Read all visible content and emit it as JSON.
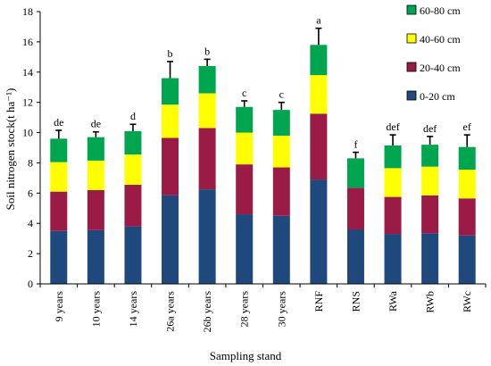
{
  "chart_data": {
    "type": "bar",
    "stacked": true,
    "title": "",
    "xlabel": "Sampling stand",
    "ylabel": "Soil nitrogen stock(t ha⁻¹)",
    "ylim": [
      0,
      18
    ],
    "yticks": [
      "0",
      "2",
      "4",
      "6",
      "8",
      "10",
      "12",
      "14",
      "16",
      "18"
    ],
    "grid": false,
    "legend_position": "top-right",
    "categories": [
      "9 years",
      "10 years",
      "14 years",
      "26a years",
      "26b years",
      "28 years",
      "30 years",
      "RNF",
      "RNS",
      "RWa",
      "RWb",
      "RWc"
    ],
    "series": [
      {
        "name": "0-20 cm",
        "color": "#1F497D",
        "values": [
          3.5,
          3.55,
          3.8,
          5.85,
          6.25,
          4.6,
          4.5,
          6.9,
          3.6,
          3.3,
          3.35,
          3.2
        ]
      },
      {
        "name": "20-40 cm",
        "color": "#9B1B47",
        "values": [
          2.6,
          2.65,
          2.75,
          3.8,
          4.05,
          3.3,
          3.2,
          4.35,
          2.75,
          2.45,
          2.5,
          2.45
        ]
      },
      {
        "name": "40-60 cm",
        "color": "#FFFF00",
        "values": [
          1.95,
          1.95,
          2.0,
          2.2,
          2.3,
          2.1,
          2.1,
          2.55,
          0.0,
          1.9,
          1.9,
          1.9
        ]
      },
      {
        "name": "60-80 cm",
        "color": "#00A550",
        "values": [
          1.55,
          1.55,
          1.55,
          1.75,
          1.8,
          1.7,
          1.7,
          2.0,
          1.95,
          1.5,
          1.45,
          1.5
        ]
      }
    ],
    "error_upper": [
      0.55,
      0.35,
      0.45,
      1.1,
      0.45,
      0.4,
      0.5,
      1.1,
      0.4,
      0.7,
      0.55,
      0.8
    ],
    "significance_labels": [
      "de",
      "de",
      "d",
      "b",
      "b",
      "c",
      "c",
      "a",
      "f",
      "def",
      "def",
      "ef"
    ]
  }
}
